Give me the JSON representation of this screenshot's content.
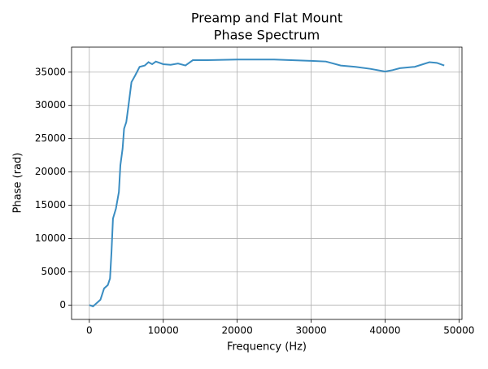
{
  "chart_data": {
    "type": "line",
    "title": "Preamp and Flat Mount",
    "subtitle": "Phase Spectrum",
    "x_label": "Frequency (Hz)",
    "y_label": "Phase (rad)",
    "x": [
      0,
      500,
      1000,
      1500,
      2000,
      2500,
      2800,
      3000,
      3200,
      3600,
      4000,
      4200,
      4500,
      4700,
      5000,
      5300,
      5700,
      6200,
      6800,
      7500,
      8000,
      8500,
      9000,
      10000,
      11000,
      12000,
      13000,
      14000,
      16000,
      20000,
      25000,
      30000,
      32000,
      34000,
      36000,
      38000,
      40000,
      41000,
      42000,
      44000,
      46000,
      47000,
      48000
    ],
    "series": [
      {
        "name": "Phase",
        "color": "#3a8dc2",
        "values": [
          0,
          -200,
          300,
          800,
          2500,
          3000,
          4000,
          8000,
          13000,
          14500,
          17000,
          21000,
          23500,
          26500,
          27500,
          30000,
          33500,
          34500,
          35800,
          36000,
          36500,
          36200,
          36600,
          36200,
          36100,
          36300,
          36000,
          36800,
          36800,
          36900,
          36900,
          36700,
          36600,
          36000,
          35800,
          35500,
          35100,
          35300,
          35600,
          35800,
          36500,
          36400,
          36000
        ]
      }
    ],
    "xlim": [
      -2400,
      50400
    ],
    "ylim": [
      -2160,
      38760
    ],
    "xticks": [
      0,
      10000,
      20000,
      30000,
      40000,
      50000
    ],
    "yticks": [
      0,
      5000,
      10000,
      15000,
      20000,
      25000,
      30000,
      35000
    ],
    "grid": true
  }
}
